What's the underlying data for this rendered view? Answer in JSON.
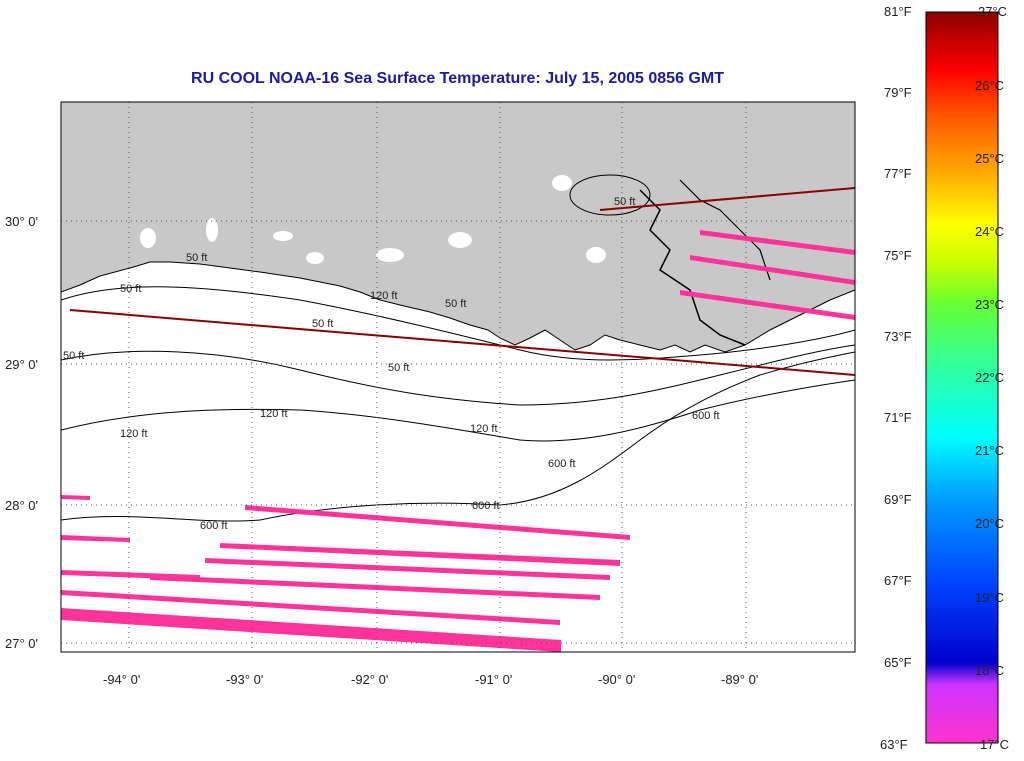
{
  "map": {
    "title": "RU COOL  NOAA-16  Sea Surface Temperature:  July 15, 2005 0856 GMT",
    "lon_labels": [
      "-94° 0'",
      "-93° 0'",
      "-92° 0'",
      "-91° 0'",
      "-90° 0'",
      "-89° 0'"
    ],
    "lat_labels": [
      "30° 0'",
      "29° 0'",
      "28° 0'",
      "27° 0'"
    ],
    "contour_labels": [
      "50 ft",
      "50 ft",
      "50 ft",
      "50 ft",
      "50 ft",
      "50 ft",
      "50 ft",
      "120 ft",
      "120 ft",
      "120 ft",
      "120 ft",
      "600 ft",
      "600 ft",
      "600 ft",
      "600 ft"
    ],
    "colors": {
      "land": "#c8c8c8",
      "ocean": "#ffffff",
      "swath": "#ff3399",
      "track": "#8b0000",
      "title": "#1a1aa8"
    }
  },
  "colorbar": {
    "fahrenheit_labels": [
      "81°F",
      "79°F",
      "77°F",
      "75°F",
      "73°F",
      "71°F",
      "69°F",
      "67°F",
      "65°F",
      "63°F"
    ],
    "celsius_labels": [
      "27°C",
      "26°C",
      "25°C",
      "24°C",
      "23°C",
      "22°C",
      "21°C",
      "20°C",
      "19°C",
      "18°C",
      "17°C"
    ]
  }
}
